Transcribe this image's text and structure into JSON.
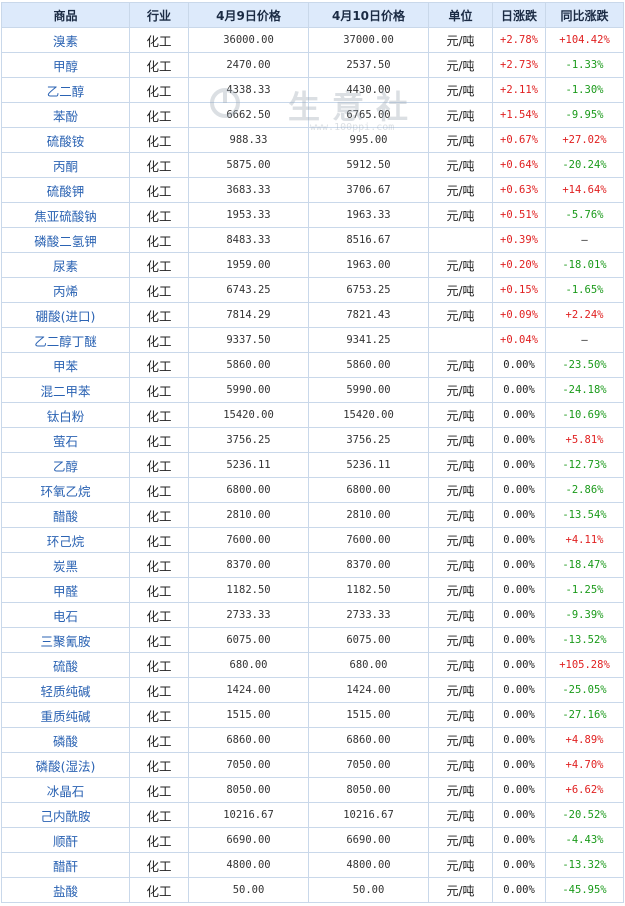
{
  "headers": {
    "name": "商品",
    "industry": "行业",
    "apr9": "4月9日价格",
    "apr10": "4月10日价格",
    "unit": "单位",
    "daily": "日涨跌",
    "yoy": "同比涨跌"
  },
  "watermark": {
    "text": "生意社",
    "url": "www.100ppi.com"
  },
  "rows": [
    {
      "name": "溴素",
      "industry": "化工",
      "apr9": "36000.00",
      "apr10": "37000.00",
      "unit": "元/吨",
      "daily": "+2.78%",
      "yoy": "+104.42%"
    },
    {
      "name": "甲醇",
      "industry": "化工",
      "apr9": "2470.00",
      "apr10": "2537.50",
      "unit": "元/吨",
      "daily": "+2.73%",
      "yoy": "-1.33%"
    },
    {
      "name": "乙二醇",
      "industry": "化工",
      "apr9": "4338.33",
      "apr10": "4430.00",
      "unit": "元/吨",
      "daily": "+2.11%",
      "yoy": "-1.30%"
    },
    {
      "name": "苯酚",
      "industry": "化工",
      "apr9": "6662.50",
      "apr10": "6765.00",
      "unit": "元/吨",
      "daily": "+1.54%",
      "yoy": "-9.95%"
    },
    {
      "name": "硫酸铵",
      "industry": "化工",
      "apr9": "988.33",
      "apr10": "995.00",
      "unit": "元/吨",
      "daily": "+0.67%",
      "yoy": "+27.02%"
    },
    {
      "name": "丙酮",
      "industry": "化工",
      "apr9": "5875.00",
      "apr10": "5912.50",
      "unit": "元/吨",
      "daily": "+0.64%",
      "yoy": "-20.24%"
    },
    {
      "name": "硫酸钾",
      "industry": "化工",
      "apr9": "3683.33",
      "apr10": "3706.67",
      "unit": "元/吨",
      "daily": "+0.63%",
      "yoy": "+14.64%"
    },
    {
      "name": "焦亚硫酸钠",
      "industry": "化工",
      "apr9": "1953.33",
      "apr10": "1963.33",
      "unit": "元/吨",
      "daily": "+0.51%",
      "yoy": "-5.76%"
    },
    {
      "name": "磷酸二氢钾",
      "industry": "化工",
      "apr9": "8483.33",
      "apr10": "8516.67",
      "unit": "",
      "daily": "+0.39%",
      "yoy": "—"
    },
    {
      "name": "尿素",
      "industry": "化工",
      "apr9": "1959.00",
      "apr10": "1963.00",
      "unit": "元/吨",
      "daily": "+0.20%",
      "yoy": "-18.01%"
    },
    {
      "name": "丙烯",
      "industry": "化工",
      "apr9": "6743.25",
      "apr10": "6753.25",
      "unit": "元/吨",
      "daily": "+0.15%",
      "yoy": "-1.65%"
    },
    {
      "name": "硼酸(进口)",
      "industry": "化工",
      "apr9": "7814.29",
      "apr10": "7821.43",
      "unit": "元/吨",
      "daily": "+0.09%",
      "yoy": "+2.24%"
    },
    {
      "name": "乙二醇丁醚",
      "industry": "化工",
      "apr9": "9337.50",
      "apr10": "9341.25",
      "unit": "",
      "daily": "+0.04%",
      "yoy": "—"
    },
    {
      "name": "甲苯",
      "industry": "化工",
      "apr9": "5860.00",
      "apr10": "5860.00",
      "unit": "元/吨",
      "daily": "0.00%",
      "yoy": "-23.50%"
    },
    {
      "name": "混二甲苯",
      "industry": "化工",
      "apr9": "5990.00",
      "apr10": "5990.00",
      "unit": "元/吨",
      "daily": "0.00%",
      "yoy": "-24.18%"
    },
    {
      "name": "钛白粉",
      "industry": "化工",
      "apr9": "15420.00",
      "apr10": "15420.00",
      "unit": "元/吨",
      "daily": "0.00%",
      "yoy": "-10.69%"
    },
    {
      "name": "萤石",
      "industry": "化工",
      "apr9": "3756.25",
      "apr10": "3756.25",
      "unit": "元/吨",
      "daily": "0.00%",
      "yoy": "+5.81%"
    },
    {
      "name": "乙醇",
      "industry": "化工",
      "apr9": "5236.11",
      "apr10": "5236.11",
      "unit": "元/吨",
      "daily": "0.00%",
      "yoy": "-12.73%"
    },
    {
      "name": "环氧乙烷",
      "industry": "化工",
      "apr9": "6800.00",
      "apr10": "6800.00",
      "unit": "元/吨",
      "daily": "0.00%",
      "yoy": "-2.86%"
    },
    {
      "name": "醋酸",
      "industry": "化工",
      "apr9": "2810.00",
      "apr10": "2810.00",
      "unit": "元/吨",
      "daily": "0.00%",
      "yoy": "-13.54%"
    },
    {
      "name": "环己烷",
      "industry": "化工",
      "apr9": "7600.00",
      "apr10": "7600.00",
      "unit": "元/吨",
      "daily": "0.00%",
      "yoy": "+4.11%"
    },
    {
      "name": "炭黑",
      "industry": "化工",
      "apr9": "8370.00",
      "apr10": "8370.00",
      "unit": "元/吨",
      "daily": "0.00%",
      "yoy": "-18.47%"
    },
    {
      "name": "甲醛",
      "industry": "化工",
      "apr9": "1182.50",
      "apr10": "1182.50",
      "unit": "元/吨",
      "daily": "0.00%",
      "yoy": "-1.25%"
    },
    {
      "name": "电石",
      "industry": "化工",
      "apr9": "2733.33",
      "apr10": "2733.33",
      "unit": "元/吨",
      "daily": "0.00%",
      "yoy": "-9.39%"
    },
    {
      "name": "三聚氰胺",
      "industry": "化工",
      "apr9": "6075.00",
      "apr10": "6075.00",
      "unit": "元/吨",
      "daily": "0.00%",
      "yoy": "-13.52%"
    },
    {
      "name": "硫酸",
      "industry": "化工",
      "apr9": "680.00",
      "apr10": "680.00",
      "unit": "元/吨",
      "daily": "0.00%",
      "yoy": "+105.28%"
    },
    {
      "name": "轻质纯碱",
      "industry": "化工",
      "apr9": "1424.00",
      "apr10": "1424.00",
      "unit": "元/吨",
      "daily": "0.00%",
      "yoy": "-25.05%"
    },
    {
      "name": "重质纯碱",
      "industry": "化工",
      "apr9": "1515.00",
      "apr10": "1515.00",
      "unit": "元/吨",
      "daily": "0.00%",
      "yoy": "-27.16%"
    },
    {
      "name": "磷酸",
      "industry": "化工",
      "apr9": "6860.00",
      "apr10": "6860.00",
      "unit": "元/吨",
      "daily": "0.00%",
      "yoy": "+4.89%"
    },
    {
      "name": "磷酸(湿法)",
      "industry": "化工",
      "apr9": "7050.00",
      "apr10": "7050.00",
      "unit": "元/吨",
      "daily": "0.00%",
      "yoy": "+4.70%"
    },
    {
      "name": "冰晶石",
      "industry": "化工",
      "apr9": "8050.00",
      "apr10": "8050.00",
      "unit": "元/吨",
      "daily": "0.00%",
      "yoy": "+6.62%"
    },
    {
      "name": "己内酰胺",
      "industry": "化工",
      "apr9": "10216.67",
      "apr10": "10216.67",
      "unit": "元/吨",
      "daily": "0.00%",
      "yoy": "-20.52%"
    },
    {
      "name": "顺酐",
      "industry": "化工",
      "apr9": "6690.00",
      "apr10": "6690.00",
      "unit": "元/吨",
      "daily": "0.00%",
      "yoy": "-4.43%"
    },
    {
      "name": "醋酐",
      "industry": "化工",
      "apr9": "4800.00",
      "apr10": "4800.00",
      "unit": "元/吨",
      "daily": "0.00%",
      "yoy": "-13.32%"
    },
    {
      "name": "盐酸",
      "industry": "化工",
      "apr9": "50.00",
      "apr10": "50.00",
      "unit": "元/吨",
      "daily": "0.00%",
      "yoy": "-45.95%"
    }
  ],
  "colors": {
    "up": "#e02020",
    "down": "#1a9a1a",
    "header_bg": "#ddeafb",
    "name_link": "#2b63b3"
  }
}
